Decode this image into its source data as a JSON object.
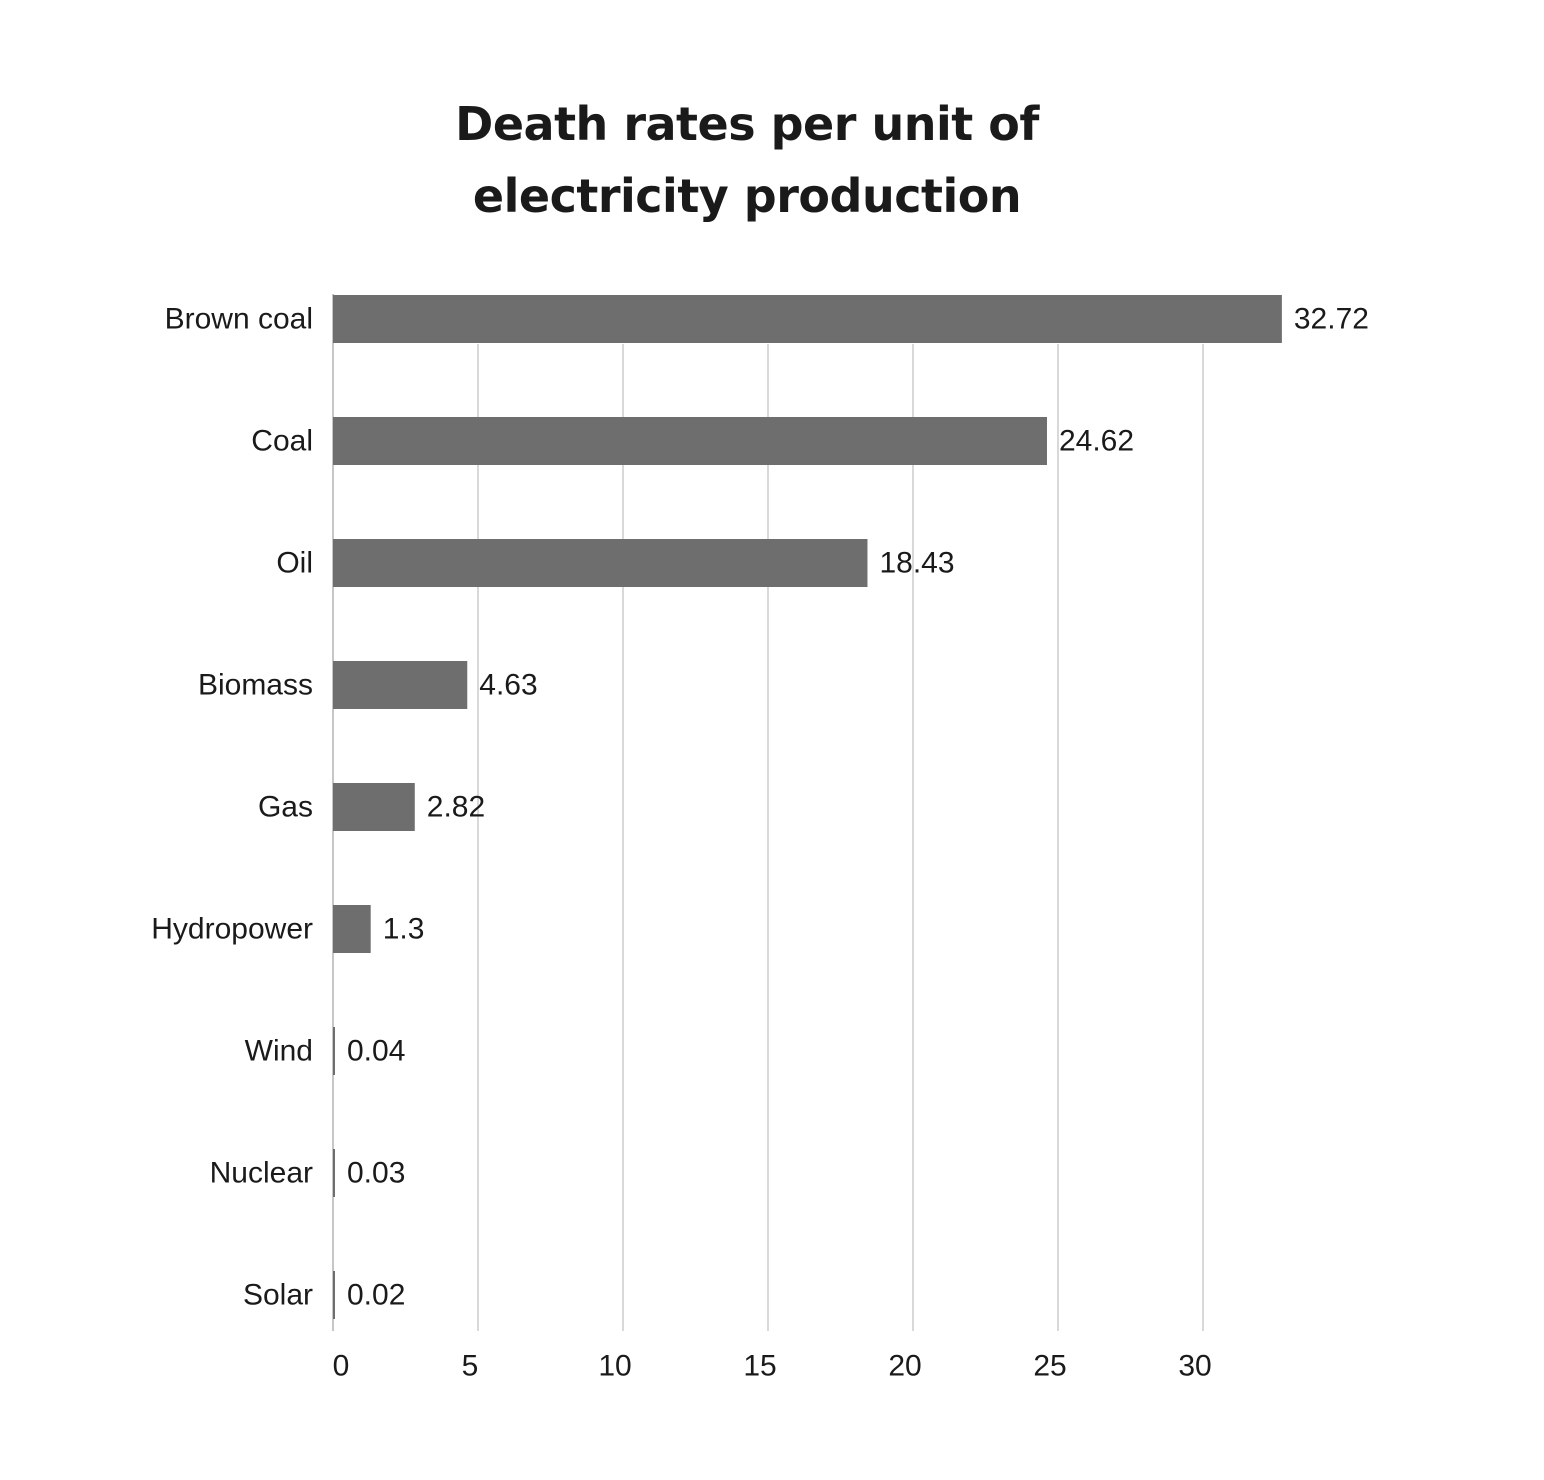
{
  "chart_data": {
    "type": "bar",
    "orientation": "horizontal",
    "title_lines": [
      "Death rates per unit of",
      "electricity production"
    ],
    "categories": [
      "Brown coal",
      "Coal",
      "Oil",
      "Biomass",
      "Gas",
      "Hydropower",
      "Wind",
      "Nuclear",
      "Solar"
    ],
    "values": [
      32.72,
      24.62,
      18.43,
      4.63,
      2.82,
      1.3,
      0.04,
      0.03,
      0.02
    ],
    "value_labels": [
      "32.72",
      "24.62",
      "18.43",
      "4.63",
      "2.82",
      "1.3",
      "0.04",
      "0.03",
      "0.02"
    ],
    "x_ticks": [
      0,
      5,
      10,
      15,
      20,
      25,
      30
    ],
    "xlim": [
      0,
      33
    ],
    "xlabel": "",
    "ylabel": "",
    "grid": "vertical",
    "legend": "none",
    "bar_color": "#6e6e6e",
    "grid_color": "#b3b3b3"
  }
}
